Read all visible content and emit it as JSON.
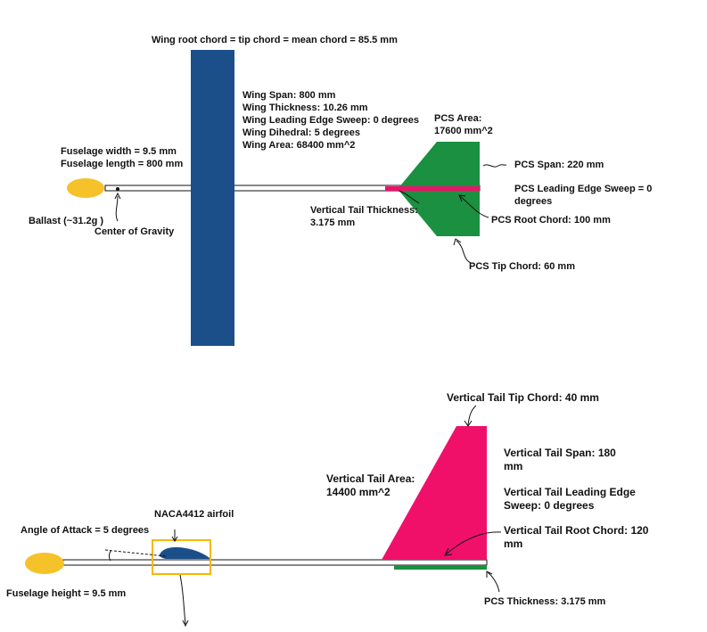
{
  "colors": {
    "wing": "#1a4f8a",
    "tail_pink": "#f0106a",
    "pcs_green": "#1a9040",
    "ballast": "#f5c22a",
    "aoa_box": "#f5b800"
  },
  "top_view": {
    "wing_chord_note": "Wing root chord = tip chord = mean chord = 85.5 mm",
    "wing_specs": [
      "Wing Span: 800 mm",
      "Wing Thickness: 10.26 mm",
      "Wing Leading Edge Sweep: 0 degrees",
      "Wing Dihedral: 5 degrees",
      "Wing Area: 68400 mm^2"
    ],
    "fuselage_specs": [
      "Fuselage width = 9.5 mm",
      "Fuselage length = 800 mm"
    ],
    "ballast": "Ballast (~31.2g )",
    "center_of_gravity": "Center of Gravity",
    "vertical_tail_thickness": [
      "Vertical Tail Thickness:",
      "3.175 mm"
    ],
    "pcs_area": [
      "PCS Area:",
      "17600 mm^2"
    ],
    "pcs_span": "PCS Span: 220 mm",
    "pcs_sweep": [
      "PCS Leading Edge Sweep = 0",
      "degrees"
    ],
    "pcs_root_chord": "PCS Root Chord: 100 mm",
    "pcs_tip_chord": "PCS Tip Chord: 60 mm"
  },
  "side_view": {
    "vt_tip_chord": "Vertical Tail Tip Chord: 40 mm",
    "vt_span": [
      "Vertical Tail Span: 180",
      "mm"
    ],
    "vt_area": [
      "Vertical Tail Area:",
      "14400 mm^2"
    ],
    "vt_sweep": [
      "Vertical Tail Leading Edge",
      "Sweep: 0 degrees"
    ],
    "vt_root_chord": "Vertical Tail Root Chord: 120",
    "vt_root_unit": "mm",
    "airfoil": "NACA4412 airfoil",
    "angle_of_attack": "Angle of Attack = 5 degrees",
    "fuselage_height": "Fuselage height = 9.5 mm",
    "pcs_thickness": "PCS Thickness: 3.175 mm"
  }
}
